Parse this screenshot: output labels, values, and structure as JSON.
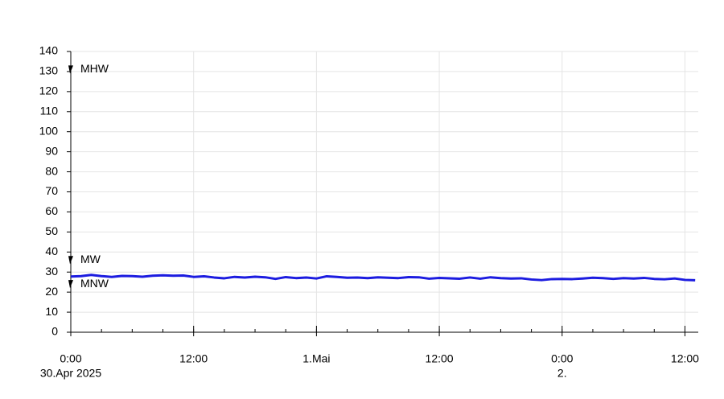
{
  "chart_data": {
    "type": "line",
    "x": [
      0,
      1,
      2,
      3,
      4,
      5,
      6,
      7,
      8,
      9,
      10,
      11,
      12,
      13,
      14,
      15,
      16,
      17,
      18,
      19,
      20,
      21,
      22,
      23,
      24,
      25,
      26,
      27,
      28,
      29,
      30,
      31,
      32,
      33,
      34,
      35,
      36,
      37,
      38,
      39,
      40,
      41,
      42,
      43,
      44,
      45,
      46,
      47,
      48,
      49,
      50,
      51,
      52,
      53,
      54,
      55,
      56,
      57,
      58,
      59,
      60,
      61
    ],
    "series": [
      {
        "color": "#1c1ce0",
        "values": [
          27.8,
          28.0,
          28.6,
          28.0,
          27.6,
          28.1,
          28.0,
          27.7,
          28.2,
          28.4,
          28.2,
          28.3,
          27.6,
          27.9,
          27.3,
          26.9,
          27.6,
          27.3,
          27.7,
          27.4,
          26.6,
          27.5,
          27.0,
          27.3,
          26.8,
          27.9,
          27.6,
          27.2,
          27.3,
          27.0,
          27.4,
          27.2,
          27.0,
          27.5,
          27.4,
          26.7,
          27.1,
          26.9,
          26.7,
          27.3,
          26.7,
          27.4,
          27.0,
          26.8,
          26.9,
          26.3,
          26.0,
          26.5,
          26.6,
          26.5,
          26.8,
          27.2,
          27.0,
          26.6,
          27.0,
          26.8,
          27.1,
          26.6,
          26.4,
          26.8,
          26.1,
          25.9
        ]
      }
    ],
    "xlim": [
      0,
      61.3
    ],
    "xticks": [
      {
        "value": 0,
        "label": "0:00"
      },
      {
        "value": 12,
        "label": "12:00"
      },
      {
        "value": 24,
        "label": "1.Mai"
      },
      {
        "value": 36,
        "label": "12:00"
      },
      {
        "value": 48,
        "label": "0:00"
      },
      {
        "value": 60,
        "label": "12:00"
      }
    ],
    "x_sublabels": [
      {
        "value": 0,
        "label": "30.Apr 2025"
      },
      {
        "value": 48,
        "label": "2."
      }
    ],
    "minor_xtick_step": 3,
    "ylim": [
      0,
      140
    ],
    "yticks": [
      0,
      10,
      20,
      30,
      40,
      50,
      60,
      70,
      80,
      90,
      100,
      110,
      120,
      130,
      140
    ],
    "grid": true,
    "annotations": [
      {
        "label": "MHW",
        "value": 131
      },
      {
        "label": "MW",
        "value": 36
      },
      {
        "label": "MNW",
        "value": 24
      }
    ]
  }
}
